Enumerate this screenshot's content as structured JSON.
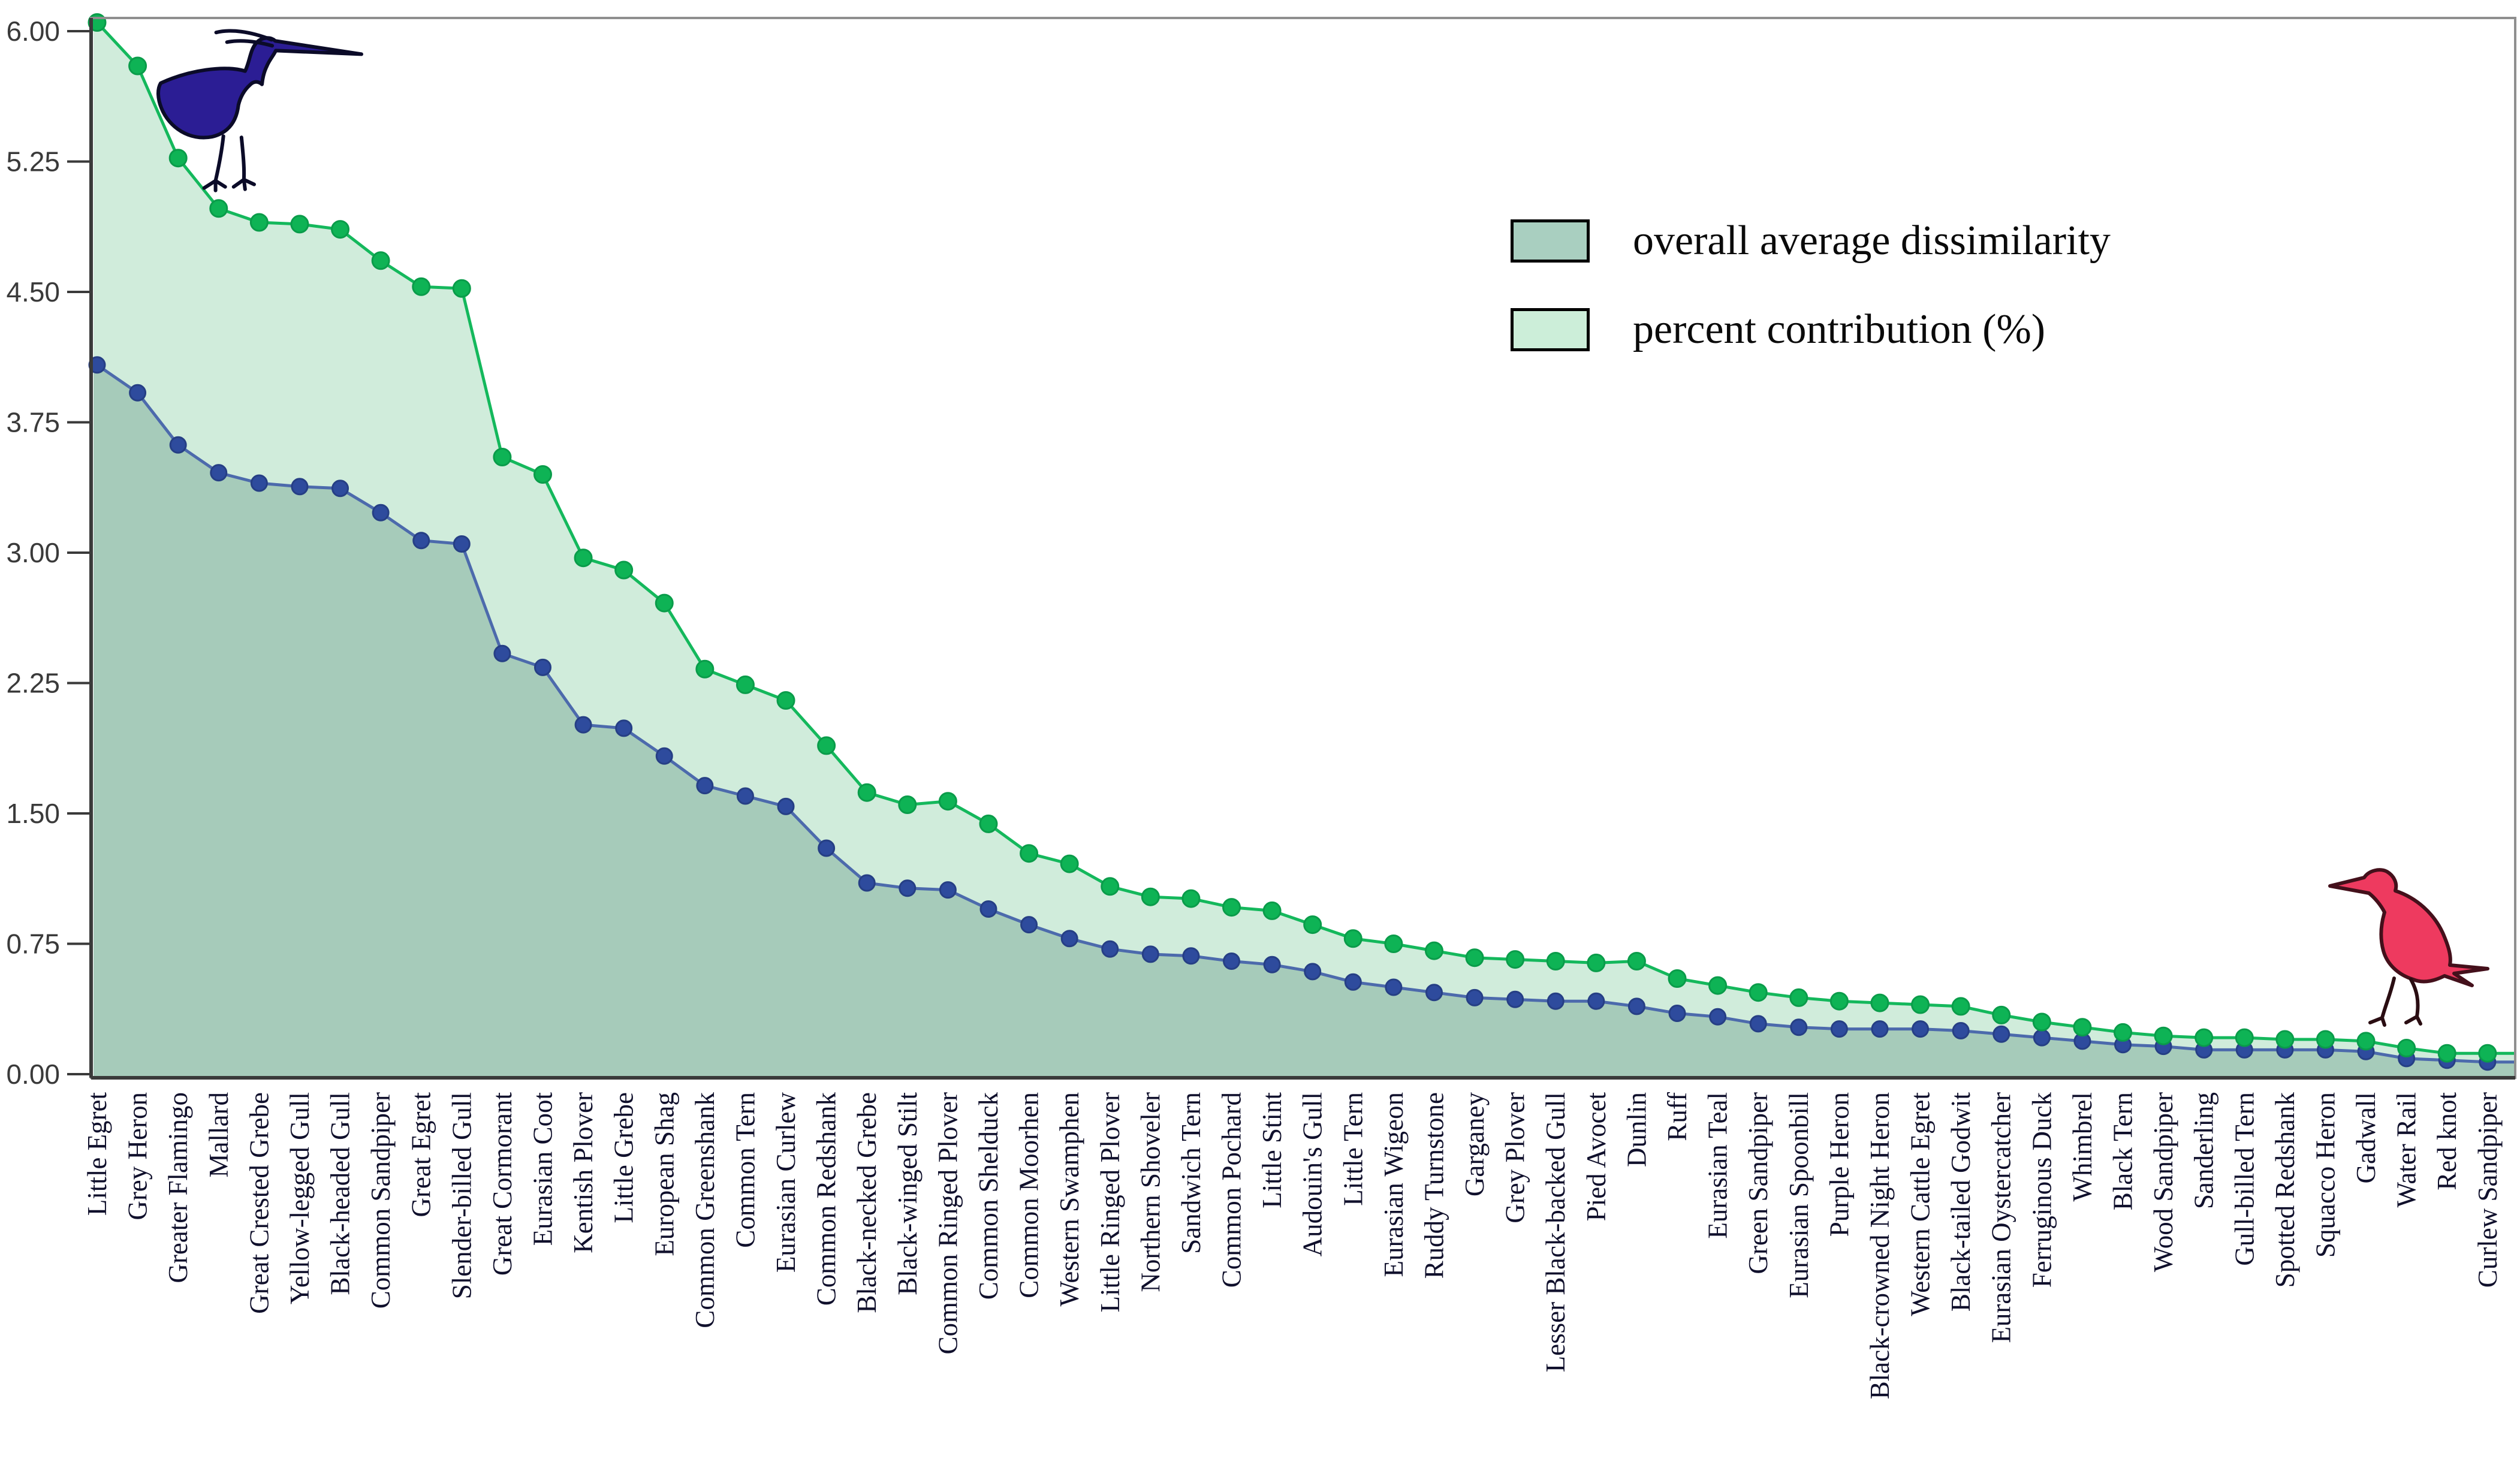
{
  "chart_data": {
    "type": "area",
    "title": "",
    "xlabel": "",
    "ylabel": "",
    "ylim": [
      0,
      6.2
    ],
    "grid": false,
    "legend_position": "upper-center-right",
    "yticks": [
      "0.00",
      "0.75",
      "1.50",
      "2.25",
      "3.00",
      "3.75",
      "4.50",
      "5.25",
      "6.00"
    ],
    "categories": [
      "Little Egret",
      "Grey Heron",
      "Greater Flamingo",
      "Mallard",
      "Great Crested Grebe",
      "Yellow-legged Gull",
      "Black-headed Gull",
      "Common Sandpiper",
      "Great Egret",
      "Slender-billed Gull",
      "Great Cormorant",
      "Eurasian Coot",
      "Kentish Plover",
      "Little Grebe",
      "European Shag",
      "Common Greenshank",
      "Common Tern",
      "Eurasian Curlew",
      "Common Redshank",
      "Black-necked Grebe",
      "Black-winged Stilt",
      "Common Ringed Plover",
      "Common Shelduck",
      "Common Moorhen",
      "Western Swamphen",
      "Little Ringed Plover",
      "Northern Shoveler",
      "Sandwich Tern",
      "Common Pochard",
      "Little Stint",
      "Audouin's Gull",
      "Little Tern",
      "Eurasian Wigeon",
      "Ruddy Turnstone",
      "Garganey",
      "Grey Plover",
      "Lesser Black-backed Gull",
      "Pied Avocet",
      "Dunlin",
      "Ruff",
      "Eurasian Teal",
      "Green Sandpiper",
      "Eurasian Spoonbill",
      "Purple Heron",
      "Black-crowned Night Heron",
      "Western Cattle Egret",
      "Black-tailed Godwit",
      "Eurasian Oystercatcher",
      "Ferruginous Duck",
      "Whimbrel",
      "Black Tern",
      "Wood Sandpiper",
      "Sanderling",
      "Gull-billed Tern",
      "Spotted Redshank",
      "Squacco Heron",
      "Gadwall",
      "Water Rail",
      "Red knot",
      "Curlew Sandpiper"
    ],
    "series": [
      {
        "name": "overall average dissimilarity",
        "line_color": "#4c6aac",
        "marker_color": "#2e4b9d",
        "marker_stroke": "#263f85",
        "fill_color": "#a6cbba",
        "values": [
          4.08,
          3.92,
          3.62,
          3.46,
          3.4,
          3.38,
          3.37,
          3.23,
          3.07,
          3.05,
          2.42,
          2.34,
          2.01,
          1.99,
          1.83,
          1.66,
          1.6,
          1.54,
          1.3,
          1.1,
          1.07,
          1.06,
          0.95,
          0.86,
          0.78,
          0.72,
          0.69,
          0.68,
          0.65,
          0.63,
          0.59,
          0.53,
          0.5,
          0.47,
          0.44,
          0.43,
          0.42,
          0.42,
          0.39,
          0.35,
          0.33,
          0.29,
          0.27,
          0.26,
          0.26,
          0.26,
          0.25,
          0.23,
          0.21,
          0.19,
          0.17,
          0.16,
          0.14,
          0.14,
          0.14,
          0.14,
          0.13,
          0.09,
          0.08,
          0.07
        ]
      },
      {
        "name": "percent contribution (%)",
        "line_color": "#14b85c",
        "marker_color": "#0eb355",
        "marker_stroke": "#0a9c4a",
        "fill_color": "#d0ecdb",
        "values": [
          6.05,
          5.8,
          5.27,
          4.98,
          4.9,
          4.89,
          4.86,
          4.68,
          4.53,
          4.52,
          3.55,
          3.45,
          2.97,
          2.9,
          2.71,
          2.33,
          2.24,
          2.15,
          1.89,
          1.62,
          1.55,
          1.57,
          1.44,
          1.27,
          1.21,
          1.08,
          1.02,
          1.01,
          0.96,
          0.94,
          0.86,
          0.78,
          0.75,
          0.71,
          0.67,
          0.66,
          0.65,
          0.64,
          0.65,
          0.55,
          0.51,
          0.47,
          0.44,
          0.42,
          0.41,
          0.4,
          0.39,
          0.34,
          0.3,
          0.27,
          0.24,
          0.22,
          0.21,
          0.21,
          0.2,
          0.2,
          0.19,
          0.15,
          0.12,
          0.12
        ]
      }
    ]
  },
  "legend": {
    "items": [
      {
        "label": "overall average dissimilarity",
        "swatch": "#a9cfc0"
      },
      {
        "label": "percent contribution (%)",
        "swatch": "#cceed9"
      }
    ]
  },
  "icons": {
    "heron": {
      "name": "heron-silhouette",
      "color": "#2b1d94",
      "outline": "#0b0b28"
    },
    "wader": {
      "name": "wader-silhouette",
      "color": "#ee3a5f",
      "outline": "#44101b"
    }
  },
  "axes": {
    "tick_color": "#3a3a3a",
    "tick_label_color": "#3a3a3a",
    "x_label_color": "#10102c",
    "border_color": "#8f8f8f",
    "axis_color": "#3a3a3a"
  }
}
